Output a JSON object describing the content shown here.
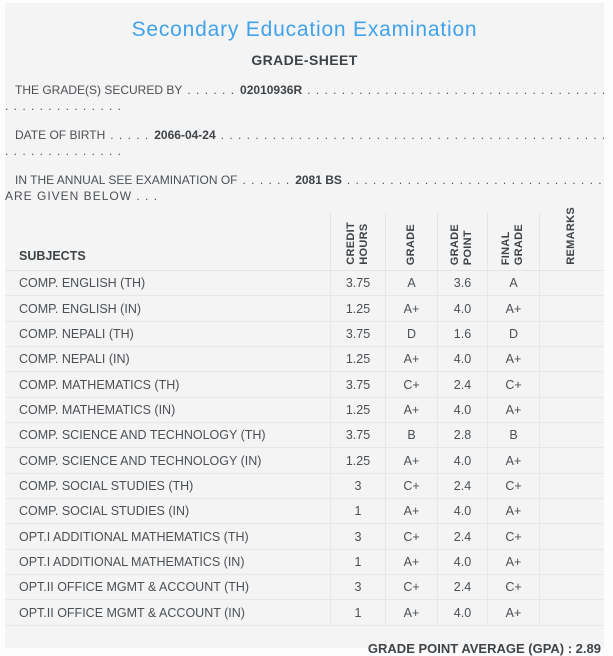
{
  "header": {
    "title": "Secondary Education Examination",
    "subtitle": "GRADE-SHEET",
    "title_color": "#3fa2ea"
  },
  "info": [
    {
      "label": "THE GRADE(S) SECURED BY",
      "leader": ". . . . . .",
      "value": "02010936R",
      "fill": ". . . . . . . . . . . . . . . . . . . . . . . . . . . . . . . . . . . . . . . . . . . . . . . . . . . . . . . . . . . .",
      "line2": ". . . . . . . . . . . . . ."
    },
    {
      "label": "DATE OF BIRTH",
      "leader": ". . . . .",
      "value": "2066-04-24",
      "fill": ". . . . . . . . . . . . . . . . . . . . . . . . . . . . . . . . . . . . . . . . . . . . . . . . . . . . . . . . . . . .",
      "line2": ". . . . . . . . . . . . . ."
    },
    {
      "label": "IN THE ANNUAL SEE EXAMINATION OF",
      "leader": ". . . . . .",
      "value": "2081 BS",
      "fill": ". . . . . . . . . . . . . . . . . . . . . . . . . . . . . . . . . . . . . . . . . . . . . . . . . . . . . . . . . . . .",
      "line2": "ARE GIVEN BELOW . . ."
    }
  ],
  "table": {
    "subjects_header": "SUBJECTS",
    "columns": [
      "CREDIT\nHOURS",
      "GRADE",
      "GRADE\nPOINT",
      "FINAL\nGRADE",
      "REMARKS"
    ],
    "rows": [
      {
        "subject": "COMP. ENGLISH (TH)",
        "credit": "3.75",
        "grade": "A",
        "grade_point": "3.6",
        "final_grade": "A",
        "remarks": ""
      },
      {
        "subject": "COMP. ENGLISH (IN)",
        "credit": "1.25",
        "grade": "A+",
        "grade_point": "4.0",
        "final_grade": "A+",
        "remarks": ""
      },
      {
        "subject": "COMP. NEPALI (TH)",
        "credit": "3.75",
        "grade": "D",
        "grade_point": "1.6",
        "final_grade": "D",
        "remarks": ""
      },
      {
        "subject": "COMP. NEPALI (IN)",
        "credit": "1.25",
        "grade": "A+",
        "grade_point": "4.0",
        "final_grade": "A+",
        "remarks": ""
      },
      {
        "subject": "COMP. MATHEMATICS (TH)",
        "credit": "3.75",
        "grade": "C+",
        "grade_point": "2.4",
        "final_grade": "C+",
        "remarks": ""
      },
      {
        "subject": "COMP. MATHEMATICS (IN)",
        "credit": "1.25",
        "grade": "A+",
        "grade_point": "4.0",
        "final_grade": "A+",
        "remarks": ""
      },
      {
        "subject": "COMP. SCIENCE AND TECHNOLOGY (TH)",
        "credit": "3.75",
        "grade": "B",
        "grade_point": "2.8",
        "final_grade": "B",
        "remarks": ""
      },
      {
        "subject": "COMP. SCIENCE AND TECHNOLOGY (IN)",
        "credit": "1.25",
        "grade": "A+",
        "grade_point": "4.0",
        "final_grade": "A+",
        "remarks": ""
      },
      {
        "subject": "COMP. SOCIAL STUDIES (TH)",
        "credit": "3",
        "grade": "C+",
        "grade_point": "2.4",
        "final_grade": "C+",
        "remarks": ""
      },
      {
        "subject": "COMP. SOCIAL STUDIES (IN)",
        "credit": "1",
        "grade": "A+",
        "grade_point": "4.0",
        "final_grade": "A+",
        "remarks": ""
      },
      {
        "subject": "OPT.I ADDITIONAL MATHEMATICS (TH)",
        "credit": "3",
        "grade": "C+",
        "grade_point": "2.4",
        "final_grade": "C+",
        "remarks": ""
      },
      {
        "subject": "OPT.I ADDITIONAL MATHEMATICS (IN)",
        "credit": "1",
        "grade": "A+",
        "grade_point": "4.0",
        "final_grade": "A+",
        "remarks": ""
      },
      {
        "subject": "OPT.II OFFICE MGMT & ACCOUNT (TH)",
        "credit": "3",
        "grade": "C+",
        "grade_point": "2.4",
        "final_grade": "C+",
        "remarks": ""
      },
      {
        "subject": "OPT.II OFFICE MGMT & ACCOUNT (IN)",
        "credit": "1",
        "grade": "A+",
        "grade_point": "4.0",
        "final_grade": "A+",
        "remarks": ""
      }
    ]
  },
  "footer": {
    "gpa_text": "GRADE POINT AVERAGE (GPA) : 2.89"
  }
}
